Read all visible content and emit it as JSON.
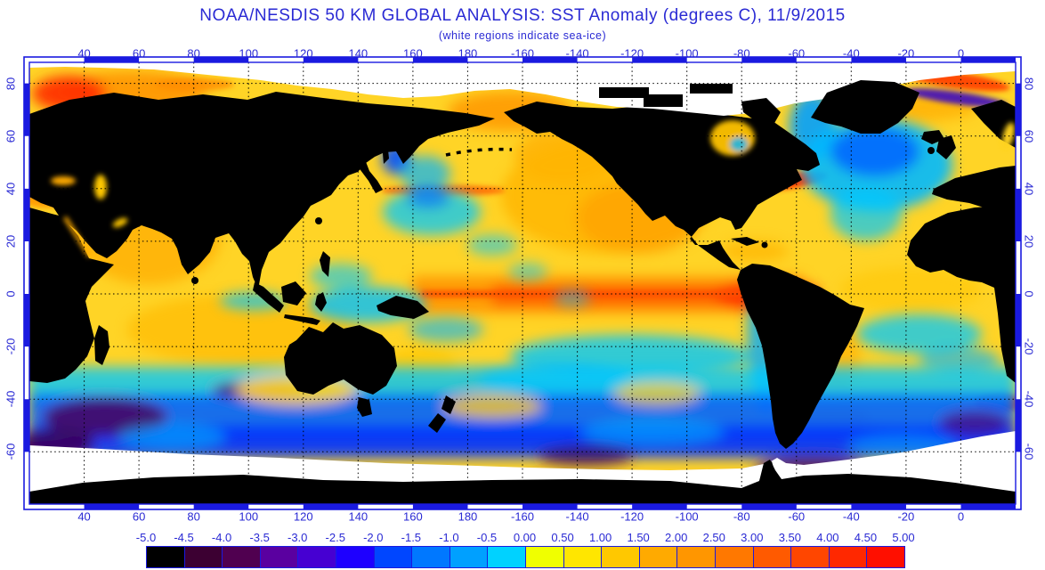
{
  "header": {
    "title": "NOAA/NESDIS 50 KM GLOBAL ANALYSIS: SST Anomaly (degrees C), 11/9/2015",
    "subtitle": "(white regions indicate sea-ice)"
  },
  "map": {
    "lon_ticks": [
      "40",
      "60",
      "80",
      "100",
      "120",
      "140",
      "160",
      "180",
      "-160",
      "-140",
      "-120",
      "-100",
      "-80",
      "-60",
      "-40",
      "-20",
      "0"
    ],
    "lat_ticks": [
      "80",
      "60",
      "40",
      "20",
      "0",
      "-20",
      "-40",
      "-60"
    ]
  },
  "colorbar": {
    "tick_labels": [
      "-5.0",
      "-4.5",
      "-4.0",
      "-3.5",
      "-3.0",
      "-2.5",
      "-2.0",
      "-1.5",
      "-1.0",
      "-0.5",
      "0.00",
      "0.50",
      "1.00",
      "1.50",
      "2.00",
      "2.50",
      "3.00",
      "3.50",
      "4.00",
      "4.50",
      "5.00"
    ],
    "cell_colors": [
      "#000000",
      "#3c0032",
      "#500050",
      "#5a00a0",
      "#4600d2",
      "#1e00ff",
      "#0046ff",
      "#0078ff",
      "#00a0ff",
      "#00d2ff",
      "#f0ff00",
      "#ffe600",
      "#ffc800",
      "#ffaa00",
      "#ff9600",
      "#ff7800",
      "#ff5a00",
      "#ff4600",
      "#ff2800",
      "#ff0f00"
    ]
  },
  "chart_data": {
    "type": "heatmap",
    "title": "NOAA/NESDIS 50 KM GLOBAL ANALYSIS: SST Anomaly (degrees C), 11/9/2015",
    "units": "degrees C",
    "scale_min": -5.0,
    "scale_max": 5.0,
    "scale_step": 0.5,
    "lon_axis_range": [
      20,
      380
    ],
    "lat_axis_labels": [
      80,
      60,
      40,
      20,
      0,
      -20,
      -40,
      -60
    ]
  },
  "colors": {
    "accent_text": "#2a2ad4",
    "frame": "#1a1ae0",
    "land": "#000000",
    "sea_ice": "#ffffff",
    "ocean_base": "#ffd426"
  }
}
